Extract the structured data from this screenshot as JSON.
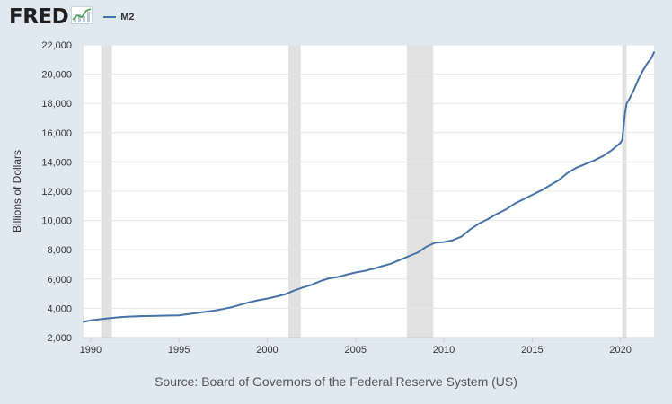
{
  "header": {
    "logo_text": "FRED",
    "legend_label": "M2"
  },
  "colors": {
    "background": "#e1e9f0",
    "plot_background": "#ffffff",
    "series_line": "#4572a7",
    "recession_shade": "#e1e1e1",
    "grid": "#e6e6e6"
  },
  "icons": {
    "logo_graph": "fred-graph-icon"
  },
  "source": "Source: Board of Governors of the Federal Reserve System (US)",
  "chart_data": {
    "type": "line",
    "title": "",
    "xlabel": "",
    "ylabel": "Billions of Dollars",
    "xlim": [
      1989.6,
      2021.9
    ],
    "ylim": [
      2000,
      22000
    ],
    "x_ticks": [
      1990,
      1995,
      2000,
      2005,
      2010,
      2015,
      2020
    ],
    "y_ticks": [
      2000,
      4000,
      6000,
      8000,
      10000,
      12000,
      14000,
      16000,
      18000,
      20000,
      22000
    ],
    "y_tick_labels": [
      "2,000",
      "4,000",
      "6,000",
      "8,000",
      "10,000",
      "12,000",
      "14,000",
      "16,000",
      "18,000",
      "20,000",
      "22,000"
    ],
    "grid": true,
    "legend_position": "top-left",
    "recessions": [
      [
        1990.6,
        1991.2
      ],
      [
        2001.2,
        2001.9
      ],
      [
        2007.9,
        2009.4
      ],
      [
        2020.1,
        2020.35
      ]
    ],
    "series": [
      {
        "name": "M2",
        "x": [
          1989.6,
          1990.0,
          1990.5,
          1991.0,
          1991.5,
          1992.0,
          1992.5,
          1993.0,
          1993.5,
          1994.0,
          1994.5,
          1995.0,
          1995.5,
          1996.0,
          1996.5,
          1997.0,
          1997.5,
          1998.0,
          1998.5,
          1999.0,
          1999.5,
          2000.0,
          2000.5,
          2001.0,
          2001.5,
          2002.0,
          2002.5,
          2003.0,
          2003.5,
          2004.0,
          2004.5,
          2005.0,
          2005.5,
          2006.0,
          2006.5,
          2007.0,
          2007.5,
          2008.0,
          2008.5,
          2009.0,
          2009.5,
          2010.0,
          2010.5,
          2011.0,
          2011.5,
          2012.0,
          2012.5,
          2013.0,
          2013.5,
          2014.0,
          2014.5,
          2015.0,
          2015.5,
          2016.0,
          2016.5,
          2017.0,
          2017.5,
          2018.0,
          2018.5,
          2019.0,
          2019.5,
          2020.0,
          2020.1,
          2020.25,
          2020.35,
          2020.5,
          2020.75,
          2021.0,
          2021.25,
          2021.5,
          2021.75,
          2021.9
        ],
        "values": [
          3080,
          3180,
          3250,
          3320,
          3380,
          3430,
          3450,
          3470,
          3480,
          3500,
          3510,
          3520,
          3600,
          3680,
          3760,
          3840,
          3950,
          4080,
          4250,
          4420,
          4550,
          4660,
          4800,
          4950,
          5200,
          5420,
          5600,
          5850,
          6050,
          6140,
          6300,
          6450,
          6550,
          6700,
          6880,
          7050,
          7300,
          7550,
          7800,
          8200,
          8480,
          8530,
          8650,
          8900,
          9400,
          9800,
          10100,
          10450,
          10750,
          11150,
          11450,
          11750,
          12050,
          12400,
          12750,
          13250,
          13600,
          13850,
          14100,
          14400,
          14800,
          15300,
          15500,
          17300,
          18000,
          18300,
          18900,
          19600,
          20200,
          20700,
          21100,
          21500
        ]
      }
    ]
  }
}
